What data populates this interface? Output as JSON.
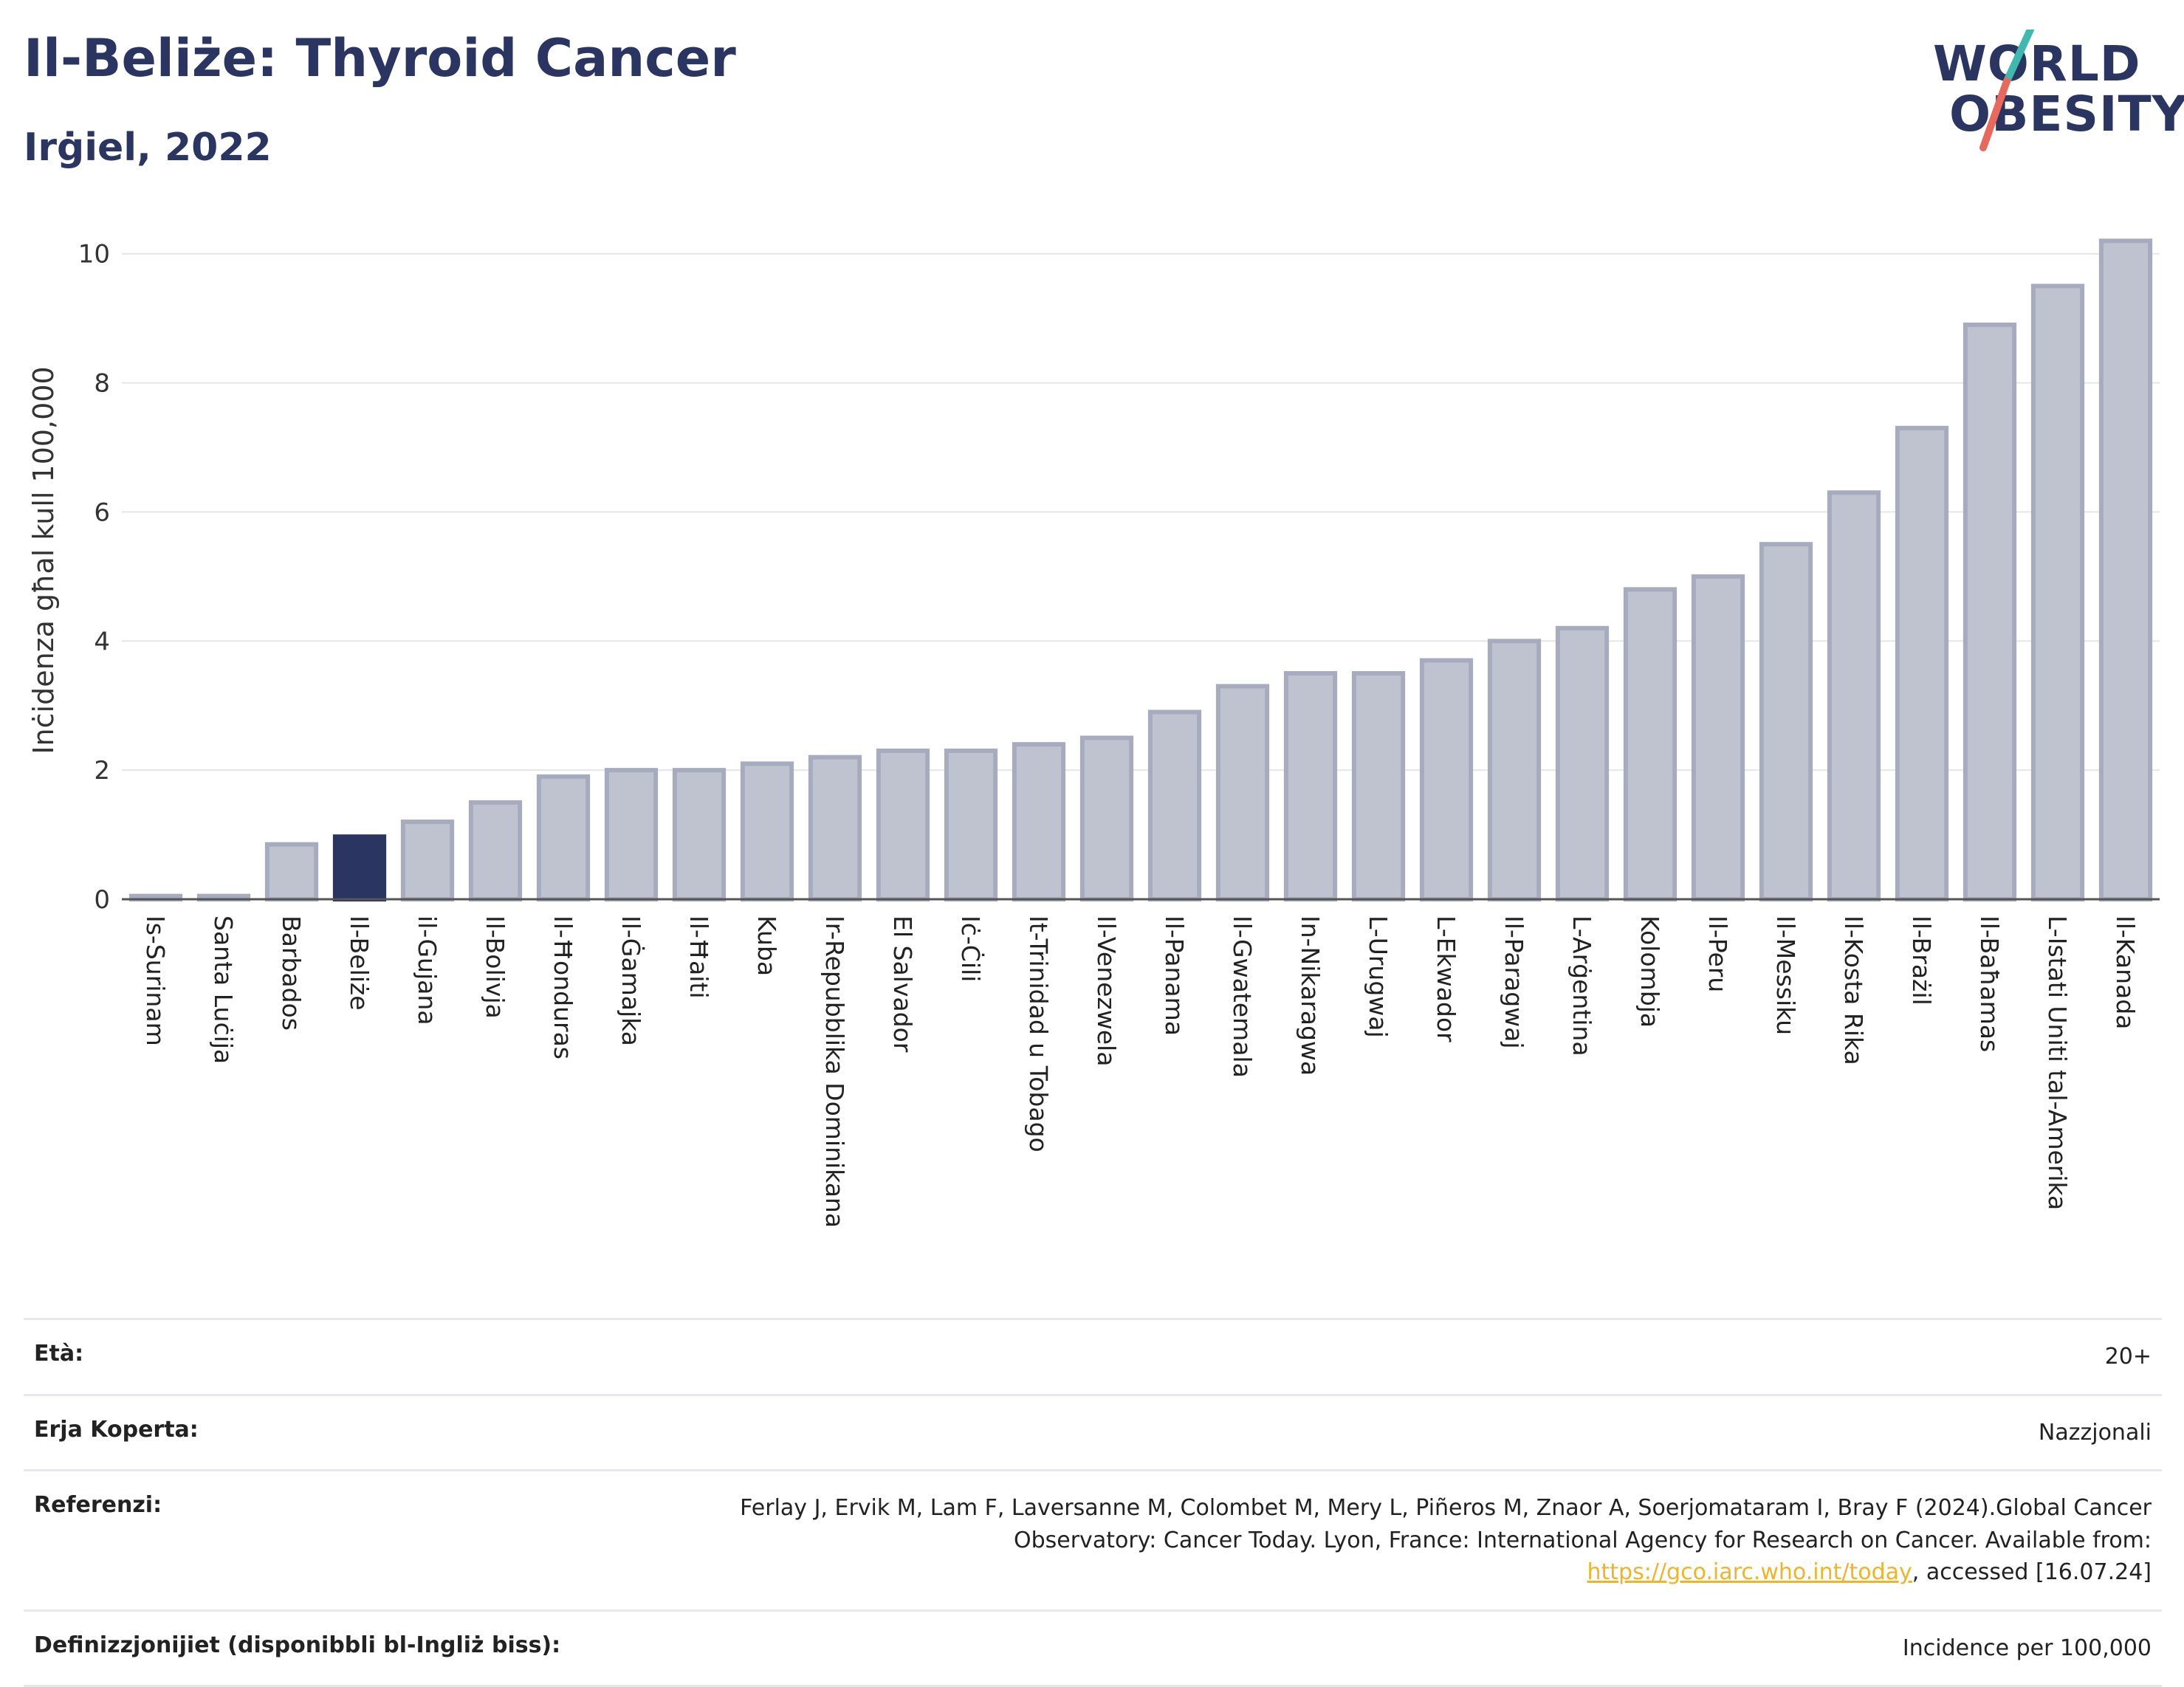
{
  "header": {
    "title": "Il-Beliże: Thyroid Cancer",
    "subtitle": "Irġiel, 2022",
    "logo_line1": "WORLD",
    "logo_line2": "OBESITY"
  },
  "colors": {
    "bar": "#bfc3d0",
    "bar_stroke": "#a6abbe",
    "highlight": "#2b3561",
    "text": "#2b3561",
    "logo_teal": "#3fb8b0",
    "logo_red": "#e8695b"
  },
  "chart_data": {
    "type": "bar",
    "title": "Il-Beliże: Thyroid Cancer",
    "subtitle": "Irġiel, 2022",
    "ylabel": "Inċidenza għal kull 100,000",
    "ylim": [
      0,
      10.5
    ],
    "yticks": [
      0,
      2,
      4,
      6,
      8,
      10
    ],
    "grid": true,
    "highlight": "Il-Beliże",
    "categories": [
      "Is-Surinam",
      "Santa Luċija",
      "Barbados",
      "Il-Beliże",
      "il-Gujana",
      "Il-Bolivja",
      "Il-Ħonduras",
      "Il-Ġamajka",
      "Il-Ħaiti",
      "Kuba",
      "Ir-Repubblika Dominikana",
      "El Salvador",
      "Iċ-Ċili",
      "It-Trinidad u Tobago",
      "Il-Venezwela",
      "Il-Panama",
      "Il-Gwatemala",
      "In-Nikaragwa",
      "L-Urugwaj",
      "L-Ekwador",
      "Il-Paragwaj",
      "L-Arġentina",
      "Kolombja",
      "Il-Peru",
      "Il-Messiku",
      "Il-Kosta Rika",
      "Il-Brażil",
      "Il-Baħamas",
      "L-Istati Uniti tal-Amerika",
      "Il-Kanada"
    ],
    "values": [
      0.05,
      0.05,
      0.85,
      0.97,
      1.2,
      1.5,
      1.9,
      2.0,
      2.0,
      2.1,
      2.2,
      2.3,
      2.3,
      2.4,
      2.5,
      2.9,
      3.3,
      3.5,
      3.5,
      3.7,
      4.0,
      4.2,
      4.8,
      5.0,
      5.5,
      6.3,
      7.3,
      8.9,
      9.5,
      10.2
    ]
  },
  "info": [
    {
      "key": "Età:",
      "value": "20+"
    },
    {
      "key": "Erja Koperta:",
      "value": "Nazzjonali"
    },
    {
      "key": "Referenzi:",
      "value_part1": "Ferlay J, Ervik M, Lam F, Laversanne M, Colombet M, Mery L, Piñeros M, Znaor A, Soerjomataram I, Bray F (2024).Global Cancer Observatory: Cancer Today. Lyon, France: International Agency for Research on Cancer. Available from: ",
      "link": "https://gco.iarc.who.int/today",
      "value_part2": ", accessed [16.07.24]"
    },
    {
      "key": "Definizzjonijiet (disponibbli bl-Ingliż biss):",
      "value": "Incidence per 100,000"
    }
  ]
}
